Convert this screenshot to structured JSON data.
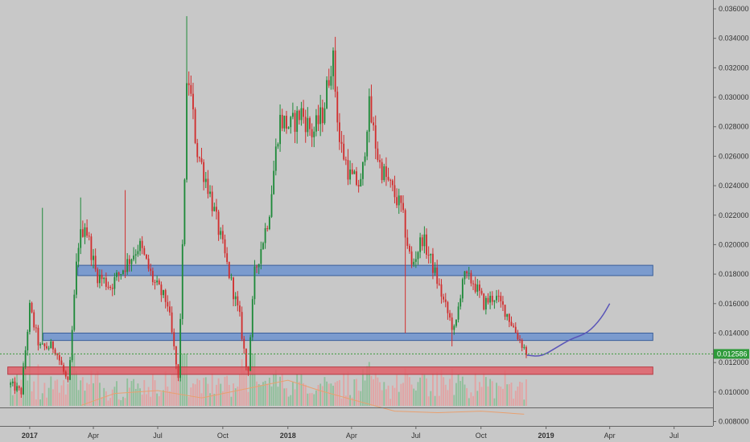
{
  "chart_data": {
    "type": "candlestick",
    "price_axis": {
      "ticks": [
        "0.036000",
        "0.034000",
        "0.032000",
        "0.030000",
        "0.028000",
        "0.026000",
        "0.024000",
        "0.022000",
        "0.020000",
        "0.018000",
        "0.016000",
        "0.014000",
        "0.012000",
        "0.010000",
        "0.008000"
      ],
      "range": [
        0.0077,
        0.0366
      ],
      "scale": "linear",
      "position": "right"
    },
    "time_axis": {
      "labels": [
        {
          "text": "2017",
          "date": "2017-01-01",
          "bold": true
        },
        {
          "text": "Apr",
          "date": "2017-04-01",
          "bold": false
        },
        {
          "text": "Jul",
          "date": "2017-07-01",
          "bold": false
        },
        {
          "text": "Oct",
          "date": "2017-10-01",
          "bold": false
        },
        {
          "text": "2018",
          "date": "2018-01-01",
          "bold": true
        },
        {
          "text": "Apr",
          "date": "2018-04-01",
          "bold": false
        },
        {
          "text": "Jul",
          "date": "2018-07-01",
          "bold": false
        },
        {
          "text": "Oct",
          "date": "2018-10-01",
          "bold": false
        },
        {
          "text": "2019",
          "date": "2019-01-01",
          "bold": true
        },
        {
          "text": "Apr",
          "date": "2019-04-01",
          "bold": false
        },
        {
          "text": "Jul",
          "date": "2019-07-01",
          "bold": false
        }
      ],
      "range": [
        "2016-11-20",
        "2019-08-25"
      ]
    },
    "last_price": {
      "text": "0.012586",
      "value": 0.012586,
      "color": "#3a9a3a"
    },
    "price_path": [
      [
        "2016-12-05",
        0.0105
      ],
      [
        "2016-12-20",
        0.01
      ],
      [
        "2017-01-01",
        0.0157
      ],
      [
        "2017-01-15",
        0.013
      ],
      [
        "2017-02-05",
        0.0131
      ],
      [
        "2017-02-25",
        0.0104
      ],
      [
        "2017-03-10",
        0.02
      ],
      [
        "2017-03-20",
        0.0215
      ],
      [
        "2017-04-05",
        0.018
      ],
      [
        "2017-04-25",
        0.0172
      ],
      [
        "2017-05-15",
        0.0185
      ],
      [
        "2017-06-05",
        0.02
      ],
      [
        "2017-06-25",
        0.0175
      ],
      [
        "2017-07-15",
        0.016
      ],
      [
        "2017-07-30",
        0.0108
      ],
      [
        "2017-08-05",
        0.0195
      ],
      [
        "2017-08-12",
        0.032
      ],
      [
        "2017-08-25",
        0.0265
      ],
      [
        "2017-09-10",
        0.024
      ],
      [
        "2017-09-25",
        0.021
      ],
      [
        "2017-10-10",
        0.018
      ],
      [
        "2017-10-25",
        0.015
      ],
      [
        "2017-11-05",
        0.011
      ],
      [
        "2017-11-15",
        0.018
      ],
      [
        "2017-12-05",
        0.022
      ],
      [
        "2017-12-20",
        0.0285
      ],
      [
        "2018-01-05",
        0.028
      ],
      [
        "2018-01-20",
        0.029
      ],
      [
        "2018-02-05",
        0.0275
      ],
      [
        "2018-02-20",
        0.029
      ],
      [
        "2018-03-05",
        0.033
      ],
      [
        "2018-03-15",
        0.027
      ],
      [
        "2018-03-31",
        0.0245
      ],
      [
        "2018-04-15",
        0.024
      ],
      [
        "2018-04-25",
        0.0295
      ],
      [
        "2018-05-10",
        0.0255
      ],
      [
        "2018-05-25",
        0.024
      ],
      [
        "2018-06-10",
        0.0225
      ],
      [
        "2018-06-25",
        0.0185
      ],
      [
        "2018-07-10",
        0.0205
      ],
      [
        "2018-07-25",
        0.0185
      ],
      [
        "2018-08-10",
        0.016
      ],
      [
        "2018-08-25",
        0.014
      ],
      [
        "2018-09-05",
        0.0178
      ],
      [
        "2018-09-20",
        0.0175
      ],
      [
        "2018-10-05",
        0.016
      ],
      [
        "2018-10-20",
        0.0165
      ],
      [
        "2018-11-05",
        0.0155
      ],
      [
        "2018-11-20",
        0.014
      ],
      [
        "2018-12-05",
        0.0126
      ]
    ],
    "spikes": [
      {
        "date": "2017-01-20",
        "high": 0.0225
      },
      {
        "date": "2017-03-15",
        "high": 0.0232
      },
      {
        "date": "2017-05-15",
        "high": 0.0237
      },
      {
        "date": "2017-08-10",
        "high": 0.0355
      },
      {
        "date": "2018-03-10",
        "high": 0.0341
      },
      {
        "date": "2018-06-15",
        "low": 0.014
      },
      {
        "date": "2018-08-20",
        "low": 0.0131
      }
    ],
    "zones": [
      {
        "kind": "resistance",
        "from": "2017-03-10",
        "to": "2019-06-01",
        "low": 0.0179,
        "high": 0.0186,
        "color": "#6d93cf"
      },
      {
        "kind": "resistance",
        "from": "2017-01-20",
        "to": "2019-06-01",
        "low": 0.0135,
        "high": 0.014,
        "color": "#6d93cf"
      },
      {
        "kind": "support",
        "from": "2016-12-01",
        "to": "2019-06-01",
        "low": 0.0112,
        "high": 0.0117,
        "color": "#e0606a"
      }
    ],
    "projection": [
      [
        "2018-12-05",
        0.0125
      ],
      [
        "2018-12-25",
        0.0124
      ],
      [
        "2019-01-15",
        0.013
      ],
      [
        "2019-02-05",
        0.0136
      ],
      [
        "2019-03-01",
        0.014
      ],
      [
        "2019-03-20",
        0.015
      ],
      [
        "2019-04-01",
        0.016
      ]
    ],
    "volume_ma": [
      [
        "2017-03-15",
        0.0091
      ],
      [
        "2017-05-01",
        0.0099
      ],
      [
        "2017-07-01",
        0.0101
      ],
      [
        "2017-09-01",
        0.0096
      ],
      [
        "2017-11-01",
        0.0102
      ],
      [
        "2018-01-01",
        0.0108
      ],
      [
        "2018-02-15",
        0.0101
      ],
      [
        "2018-04-01",
        0.0095
      ],
      [
        "2018-06-01",
        0.0087
      ],
      [
        "2018-08-01",
        0.0086
      ],
      [
        "2018-10-01",
        0.0087
      ],
      [
        "2018-12-01",
        0.0085
      ]
    ],
    "colors": {
      "up": "#1f8a3a",
      "down": "#d12f2f",
      "volume_up": "#8fbf9a",
      "volume_down": "#e2a3a3",
      "volume_ma": "#e8a070",
      "projection": "#5a55b8",
      "background": "#c8c8c8"
    },
    "grid": false
  }
}
